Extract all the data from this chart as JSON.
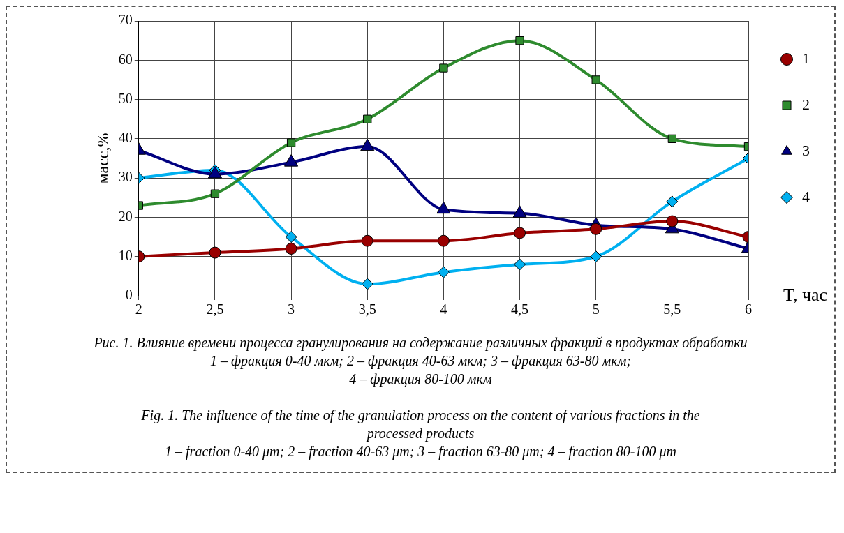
{
  "chart_data": {
    "type": "line",
    "xlabel": "T, час",
    "ylabel": "масс,%",
    "x": [
      2,
      2.5,
      3,
      3.5,
      4,
      4.5,
      5,
      5.5,
      6
    ],
    "series": [
      {
        "name": "1",
        "color": "#990000",
        "marker": "circle",
        "values": [
          10,
          11,
          12,
          14,
          14,
          16,
          17,
          19,
          15
        ]
      },
      {
        "name": "2",
        "color": "#2e8b2e",
        "marker": "square",
        "values": [
          23,
          26,
          39,
          45,
          58,
          65,
          55,
          40,
          38
        ]
      },
      {
        "name": "3",
        "color": "#000080",
        "marker": "triangle",
        "values": [
          37,
          31,
          34,
          38,
          22,
          21,
          18,
          17,
          12
        ]
      },
      {
        "name": "4",
        "color": "#00b0f0",
        "marker": "diamond",
        "values": [
          30,
          32,
          15,
          3,
          6,
          8,
          10,
          24,
          35
        ]
      }
    ],
    "xlim": [
      2,
      6
    ],
    "xticks": [
      2,
      {
        "value": 2.5,
        "label": "2,5"
      },
      3,
      {
        "value": 3.5,
        "label": "3,5"
      },
      4,
      {
        "value": 4.5,
        "label": "4,5"
      },
      5,
      {
        "value": 5.5,
        "label": "5,5"
      },
      6
    ],
    "ylim": [
      0,
      70
    ],
    "yticks": [
      0,
      10,
      20,
      30,
      40,
      50,
      60,
      70
    ],
    "grid": true,
    "legend": "top right",
    "annotations": [
      "Рис. 1. Влияние времени процесса гранулирования на содержание различных фракций в продуктах обработки",
      "1 – фракция 0-40 мкм; 2 – фракция 40-63 мкм; 3 – фракция 63-80 мкм;",
      "4 – фракция 80-100 мкм",
      "Fig. 1. The influence of the time of the granulation process on the content of various fractions in the processed products",
      "1 – fraction 0-40 μm; 2 – fraction 40-63 μm; 3 – fraction 63-80 μm; 4 – fraction 80-100 μm"
    ]
  }
}
